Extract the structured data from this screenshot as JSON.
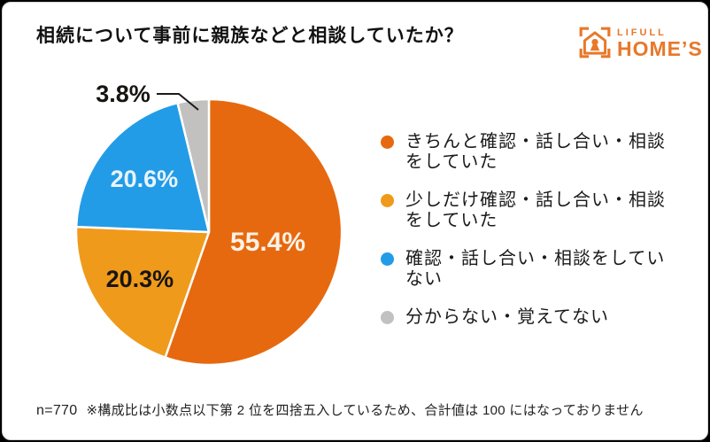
{
  "page": {
    "title": "相続について事前に親族などと相談していたか？",
    "footnote": {
      "sample": "n=770",
      "note": "※構成比は小数点以下第 2 位を四捨五入しているため、合計値は 100 にはなっておりません"
    }
  },
  "logo": {
    "brand_top": "LIFULL",
    "brand_bottom": "HOME’S",
    "color": "#E8782A"
  },
  "chart_data": {
    "type": "pie",
    "title": "相続について事前に親族などと相談していたか？",
    "legend_position": "right",
    "start_angle": "12-oclock, clockwise",
    "slices": [
      {
        "label": "きちんと確認・話し合い・相談をしていた",
        "value": 55.4,
        "display": "55.4%",
        "color": "#E6690F",
        "label_color": "#FBF2E7",
        "label_r": 0.45,
        "label_size": 30
      },
      {
        "label": "少しだけ確認・話し合い・相談をしていた",
        "value": 20.3,
        "display": "20.3%",
        "color": "#F09A1B",
        "label_color": "#171511",
        "label_r": 0.63,
        "label_size": 27
      },
      {
        "label": "確認・話し合い・相談をしていない",
        "value": 20.6,
        "display": "20.6%",
        "color": "#239CE8",
        "label_color": "#E9F4FB",
        "label_r": 0.63,
        "label_size": 27
      },
      {
        "label": "分からない・覚えてない",
        "value": 3.8,
        "display": "3.8%",
        "color": "#C2C1C0",
        "label_color": "#171511",
        "label_xy": [
          83,
          24
        ],
        "label_size": 27
      }
    ]
  }
}
